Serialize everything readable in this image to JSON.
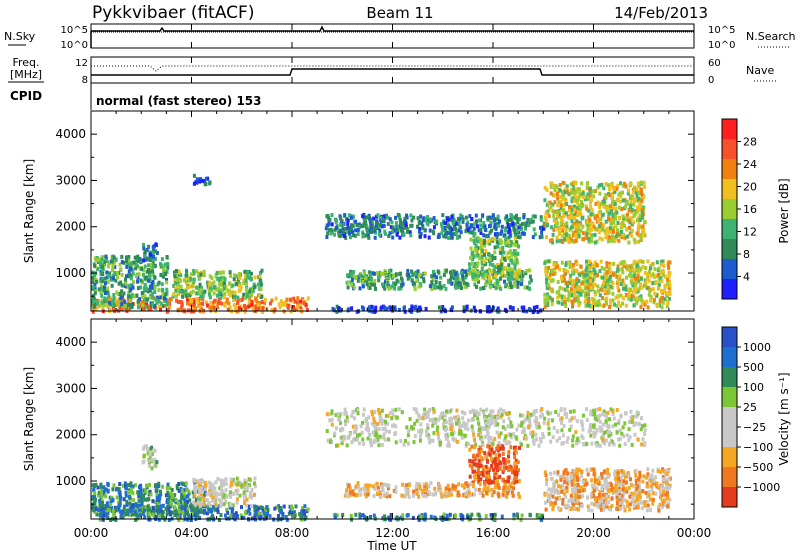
{
  "header": {
    "station": "Pykkvibaer (fitACF)",
    "beam": "Beam 11",
    "date": "14/Feb/2013"
  },
  "noise_panel": {
    "left_label": "N.Sky",
    "right_label": "N.Search",
    "left_ticks": [
      "10^5",
      "10^0"
    ],
    "right_ticks": [
      "10^5",
      "10^0"
    ]
  },
  "freq_panel": {
    "left_label_line1": "Freq.",
    "left_label_line2": "[MHz]",
    "right_label": "Nave",
    "left_ticks": [
      "12",
      "8"
    ],
    "right_ticks": [
      "60",
      "0"
    ]
  },
  "cpid": {
    "label": "CPID",
    "value": "normal (fast stereo) 153"
  },
  "time_axis": {
    "label": "Time UT",
    "ticks": [
      "00:00",
      "04:00",
      "08:00",
      "12:00",
      "16:00",
      "20:00",
      "00:00"
    ]
  },
  "chart_data": [
    {
      "type": "heatmap",
      "panel": "power",
      "ylabel": "Slant Range [km]",
      "y_ticks": [
        1000,
        2000,
        3000,
        4000
      ],
      "ylim": [
        180,
        4500
      ],
      "xlim_hours": [
        0,
        24
      ],
      "colorbar_label": "Power [dB]",
      "colorbar_ticks": [
        "28",
        "24",
        "20",
        "16",
        "12",
        "8",
        "4"
      ],
      "colors": [
        "#ff1f1f",
        "#f8502c",
        "#f08010",
        "#f0c020",
        "#9acd32",
        "#3cb371",
        "#2e8b57",
        "#1c5ccf",
        "#1f1fff"
      ],
      "regions": [
        {
          "t0": 0.0,
          "t1": 8.6,
          "r0": 200,
          "r1": 500,
          "level": 0.75
        },
        {
          "t0": 0.0,
          "t1": 3.0,
          "r0": 300,
          "r1": 1400,
          "level": 0.35
        },
        {
          "t0": 2.0,
          "t1": 2.6,
          "r0": 1300,
          "r1": 1700,
          "level": 0.2
        },
        {
          "t0": 3.2,
          "t1": 6.8,
          "r0": 500,
          "r1": 1100,
          "level": 0.45
        },
        {
          "t0": 4.0,
          "t1": 4.7,
          "r0": 2950,
          "r1": 3150,
          "level": 0.15
        },
        {
          "t0": 9.3,
          "t1": 18.0,
          "r0": 1800,
          "r1": 2300,
          "level": 0.25
        },
        {
          "t0": 10.0,
          "t1": 17.5,
          "r0": 700,
          "r1": 1100,
          "level": 0.35
        },
        {
          "t0": 15.0,
          "t1": 17.0,
          "r0": 900,
          "r1": 1800,
          "level": 0.45
        },
        {
          "t0": 18.0,
          "t1": 22.0,
          "r0": 1700,
          "r1": 3000,
          "level": 0.55
        },
        {
          "t0": 18.0,
          "t1": 23.0,
          "r0": 300,
          "r1": 1300,
          "level": 0.55
        },
        {
          "t0": 9.5,
          "t1": 18.0,
          "r0": 200,
          "r1": 320,
          "level": 0.1
        }
      ]
    },
    {
      "type": "heatmap",
      "panel": "velocity",
      "ylabel": "Slant Range [km]",
      "y_ticks": [
        1000,
        2000,
        3000,
        4000
      ],
      "ylim": [
        180,
        4500
      ],
      "xlim_hours": [
        0,
        24
      ],
      "colorbar_label": "Velocity [m s⁻¹]",
      "colorbar_ticks": [
        "1000",
        "500",
        "100",
        "25",
        "−25",
        "−100",
        "−500",
        "−1000"
      ],
      "colors": [
        "#2850c8",
        "#1e6fd0",
        "#2e8b57",
        "#7cc636",
        "#c8c8c8",
        "#c8c8c8",
        "#f5a623",
        "#f07820",
        "#e63c1e"
      ],
      "regions": [
        {
          "t0": 0.0,
          "t1": 8.6,
          "r0": 200,
          "r1": 500,
          "level": 0.8
        },
        {
          "t0": 0.0,
          "t1": 4.5,
          "r0": 300,
          "r1": 1000,
          "level": 0.75
        },
        {
          "t0": 2.0,
          "t1": 2.6,
          "r0": 1300,
          "r1": 1800,
          "level": 0.5
        },
        {
          "t0": 4.0,
          "t1": 6.5,
          "r0": 500,
          "r1": 1100,
          "level": 0.45
        },
        {
          "t0": 9.3,
          "t1": 22.0,
          "r0": 1800,
          "r1": 2600,
          "level": 0.48
        },
        {
          "t0": 15.0,
          "t1": 17.0,
          "r0": 1000,
          "r1": 1800,
          "level": 0.1
        },
        {
          "t0": 10.0,
          "t1": 17.0,
          "r0": 700,
          "r1": 1000,
          "level": 0.3
        },
        {
          "t0": 18.0,
          "t1": 23.0,
          "r0": 400,
          "r1": 1300,
          "level": 0.3
        },
        {
          "t0": 9.5,
          "t1": 18.0,
          "r0": 200,
          "r1": 320,
          "level": 0.75
        }
      ]
    }
  ]
}
